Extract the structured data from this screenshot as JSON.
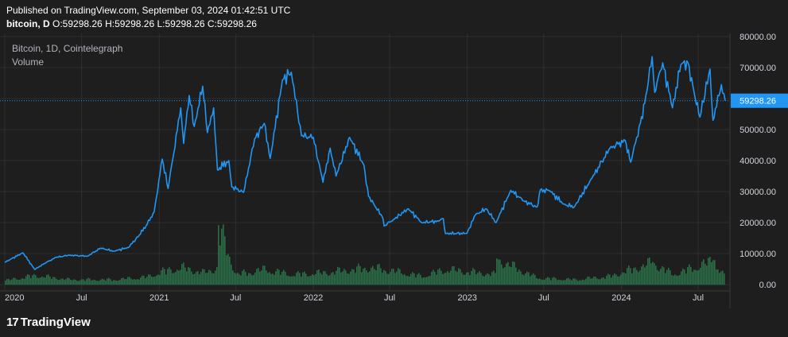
{
  "header": {
    "published": "Published on TradingView.com, September 03, 2024 01:42:51 UTC",
    "symbol_line": "bitcoin, D",
    "open": "O:59298.26",
    "high": "H:59298.26",
    "low": "L:59298.26",
    "close": "C:59298.26"
  },
  "legend": {
    "title": "Bitcoin, 1D, Cointelegraph",
    "volume": "Volume"
  },
  "branding": {
    "mark": "17",
    "name": "TradingView"
  },
  "colors": {
    "background": "#1e1e1e",
    "grid": "#2f2f2f",
    "price_line": "#2196f3",
    "volume": "#2e7d4f",
    "price_label_bg": "#2196f3",
    "axis_text": "#d1d4dc"
  },
  "chart_data": {
    "type": "line",
    "title": "Bitcoin, 1D, Cointelegraph",
    "xlabel": "",
    "ylabel": "",
    "x_range": [
      "2020-01-01",
      "2024-09-03"
    ],
    "ylim": [
      -2000,
      81000
    ],
    "y_ticks": [
      0,
      10000,
      20000,
      30000,
      40000,
      50000,
      60000,
      70000,
      80000
    ],
    "y_tick_labels": [
      "0.00",
      "10000.00",
      "20000.00",
      "30000.00",
      "40000.00",
      "50000.00",
      "60000.00",
      "70000.00",
      "80000.00"
    ],
    "x_ticks": [
      {
        "date": "2020-01-01",
        "label": "2020"
      },
      {
        "date": "2020-07-01",
        "label": "Jul"
      },
      {
        "date": "2021-01-01",
        "label": "2021"
      },
      {
        "date": "2021-07-01",
        "label": "Jul"
      },
      {
        "date": "2022-01-01",
        "label": "2022"
      },
      {
        "date": "2022-07-01",
        "label": "Jul"
      },
      {
        "date": "2023-01-01",
        "label": "2023"
      },
      {
        "date": "2023-07-01",
        "label": "Jul"
      },
      {
        "date": "2024-01-01",
        "label": "2024"
      },
      {
        "date": "2024-07-01",
        "label": "Jul"
      }
    ],
    "last_price": 59298.26,
    "last_price_label": "59298.26",
    "grid": true,
    "series": [
      {
        "name": "Bitcoin",
        "kind": "line",
        "points": [
          [
            "2020-01-01",
            7200
          ],
          [
            "2020-02-13",
            10300
          ],
          [
            "2020-03-12",
            4900
          ],
          [
            "2020-04-01",
            6600
          ],
          [
            "2020-05-01",
            8800
          ],
          [
            "2020-06-01",
            9500
          ],
          [
            "2020-07-15",
            9200
          ],
          [
            "2020-08-15",
            11800
          ],
          [
            "2020-09-15",
            10800
          ],
          [
            "2020-10-20",
            12000
          ],
          [
            "2020-11-15",
            16000
          ],
          [
            "2020-12-01",
            19000
          ],
          [
            "2020-12-20",
            23500
          ],
          [
            "2021-01-08",
            40500
          ],
          [
            "2021-01-22",
            31000
          ],
          [
            "2021-02-21",
            57000
          ],
          [
            "2021-02-28",
            45500
          ],
          [
            "2021-03-13",
            61000
          ],
          [
            "2021-03-25",
            51000
          ],
          [
            "2021-04-14",
            64000
          ],
          [
            "2021-04-25",
            49000
          ],
          [
            "2021-05-10",
            57000
          ],
          [
            "2021-05-19",
            37000
          ],
          [
            "2021-06-15",
            40000
          ],
          [
            "2021-06-22",
            31500
          ],
          [
            "2021-07-20",
            29800
          ],
          [
            "2021-08-15",
            47000
          ],
          [
            "2021-09-07",
            52000
          ],
          [
            "2021-09-21",
            40700
          ],
          [
            "2021-10-20",
            66000
          ],
          [
            "2021-11-10",
            68500
          ],
          [
            "2021-12-04",
            48000
          ],
          [
            "2022-01-01",
            47500
          ],
          [
            "2022-01-24",
            33000
          ],
          [
            "2022-02-10",
            44000
          ],
          [
            "2022-02-24",
            35000
          ],
          [
            "2022-03-28",
            47500
          ],
          [
            "2022-05-01",
            38500
          ],
          [
            "2022-05-12",
            28500
          ],
          [
            "2022-06-13",
            22000
          ],
          [
            "2022-06-18",
            18900
          ],
          [
            "2022-07-10",
            21000
          ],
          [
            "2022-08-14",
            24500
          ],
          [
            "2022-09-15",
            20000
          ],
          [
            "2022-10-25",
            20500
          ],
          [
            "2022-11-05",
            21300
          ],
          [
            "2022-11-10",
            16500
          ],
          [
            "2022-12-31",
            16550
          ],
          [
            "2023-01-20",
            22500
          ],
          [
            "2023-02-15",
            24500
          ],
          [
            "2023-03-10",
            20000
          ],
          [
            "2023-04-14",
            30400
          ],
          [
            "2023-05-15",
            27000
          ],
          [
            "2023-06-15",
            25000
          ],
          [
            "2023-06-23",
            30500
          ],
          [
            "2023-07-15",
            30300
          ],
          [
            "2023-08-17",
            26000
          ],
          [
            "2023-09-11",
            25000
          ],
          [
            "2023-10-24",
            34500
          ],
          [
            "2023-12-05",
            44000
          ],
          [
            "2024-01-10",
            46500
          ],
          [
            "2024-01-23",
            39500
          ],
          [
            "2024-02-15",
            52000
          ],
          [
            "2024-02-28",
            61000
          ],
          [
            "2024-03-14",
            73500
          ],
          [
            "2024-03-20",
            62000
          ],
          [
            "2024-04-08",
            71500
          ],
          [
            "2024-05-01",
            57000
          ],
          [
            "2024-05-21",
            71000
          ],
          [
            "2024-06-07",
            71500
          ],
          [
            "2024-06-24",
            60000
          ],
          [
            "2024-07-05",
            54000
          ],
          [
            "2024-07-29",
            69500
          ],
          [
            "2024-08-05",
            53000
          ],
          [
            "2024-08-25",
            64500
          ],
          [
            "2024-09-03",
            59298.26
          ]
        ]
      },
      {
        "name": "Volume",
        "kind": "histogram",
        "points": [
          [
            "2020-01-01",
            0.25
          ],
          [
            "2020-03-12",
            0.55
          ],
          [
            "2020-06-01",
            0.3
          ],
          [
            "2020-09-15",
            0.3
          ],
          [
            "2020-12-01",
            0.45
          ],
          [
            "2021-01-10",
            0.8
          ],
          [
            "2021-02-25",
            1.0
          ],
          [
            "2021-04-15",
            0.7
          ],
          [
            "2021-05-19",
            1.0
          ],
          [
            "2021-05-20",
            3.4
          ],
          [
            "2021-07-01",
            0.6
          ],
          [
            "2021-09-07",
            0.9
          ],
          [
            "2021-11-10",
            0.6
          ],
          [
            "2022-01-24",
            0.7
          ],
          [
            "2022-05-12",
            1.0
          ],
          [
            "2022-06-18",
            0.9
          ],
          [
            "2022-09-15",
            0.5
          ],
          [
            "2022-11-10",
            0.9
          ],
          [
            "2023-03-10",
            0.6
          ],
          [
            "2023-03-11",
            1.5
          ],
          [
            "2023-06-15",
            0.4
          ],
          [
            "2023-09-11",
            0.3
          ],
          [
            "2023-12-05",
            0.5
          ],
          [
            "2024-03-14",
            1.3
          ],
          [
            "2024-05-01",
            0.6
          ],
          [
            "2024-08-05",
            1.4
          ],
          [
            "2024-09-03",
            0.4
          ]
        ]
      }
    ]
  }
}
